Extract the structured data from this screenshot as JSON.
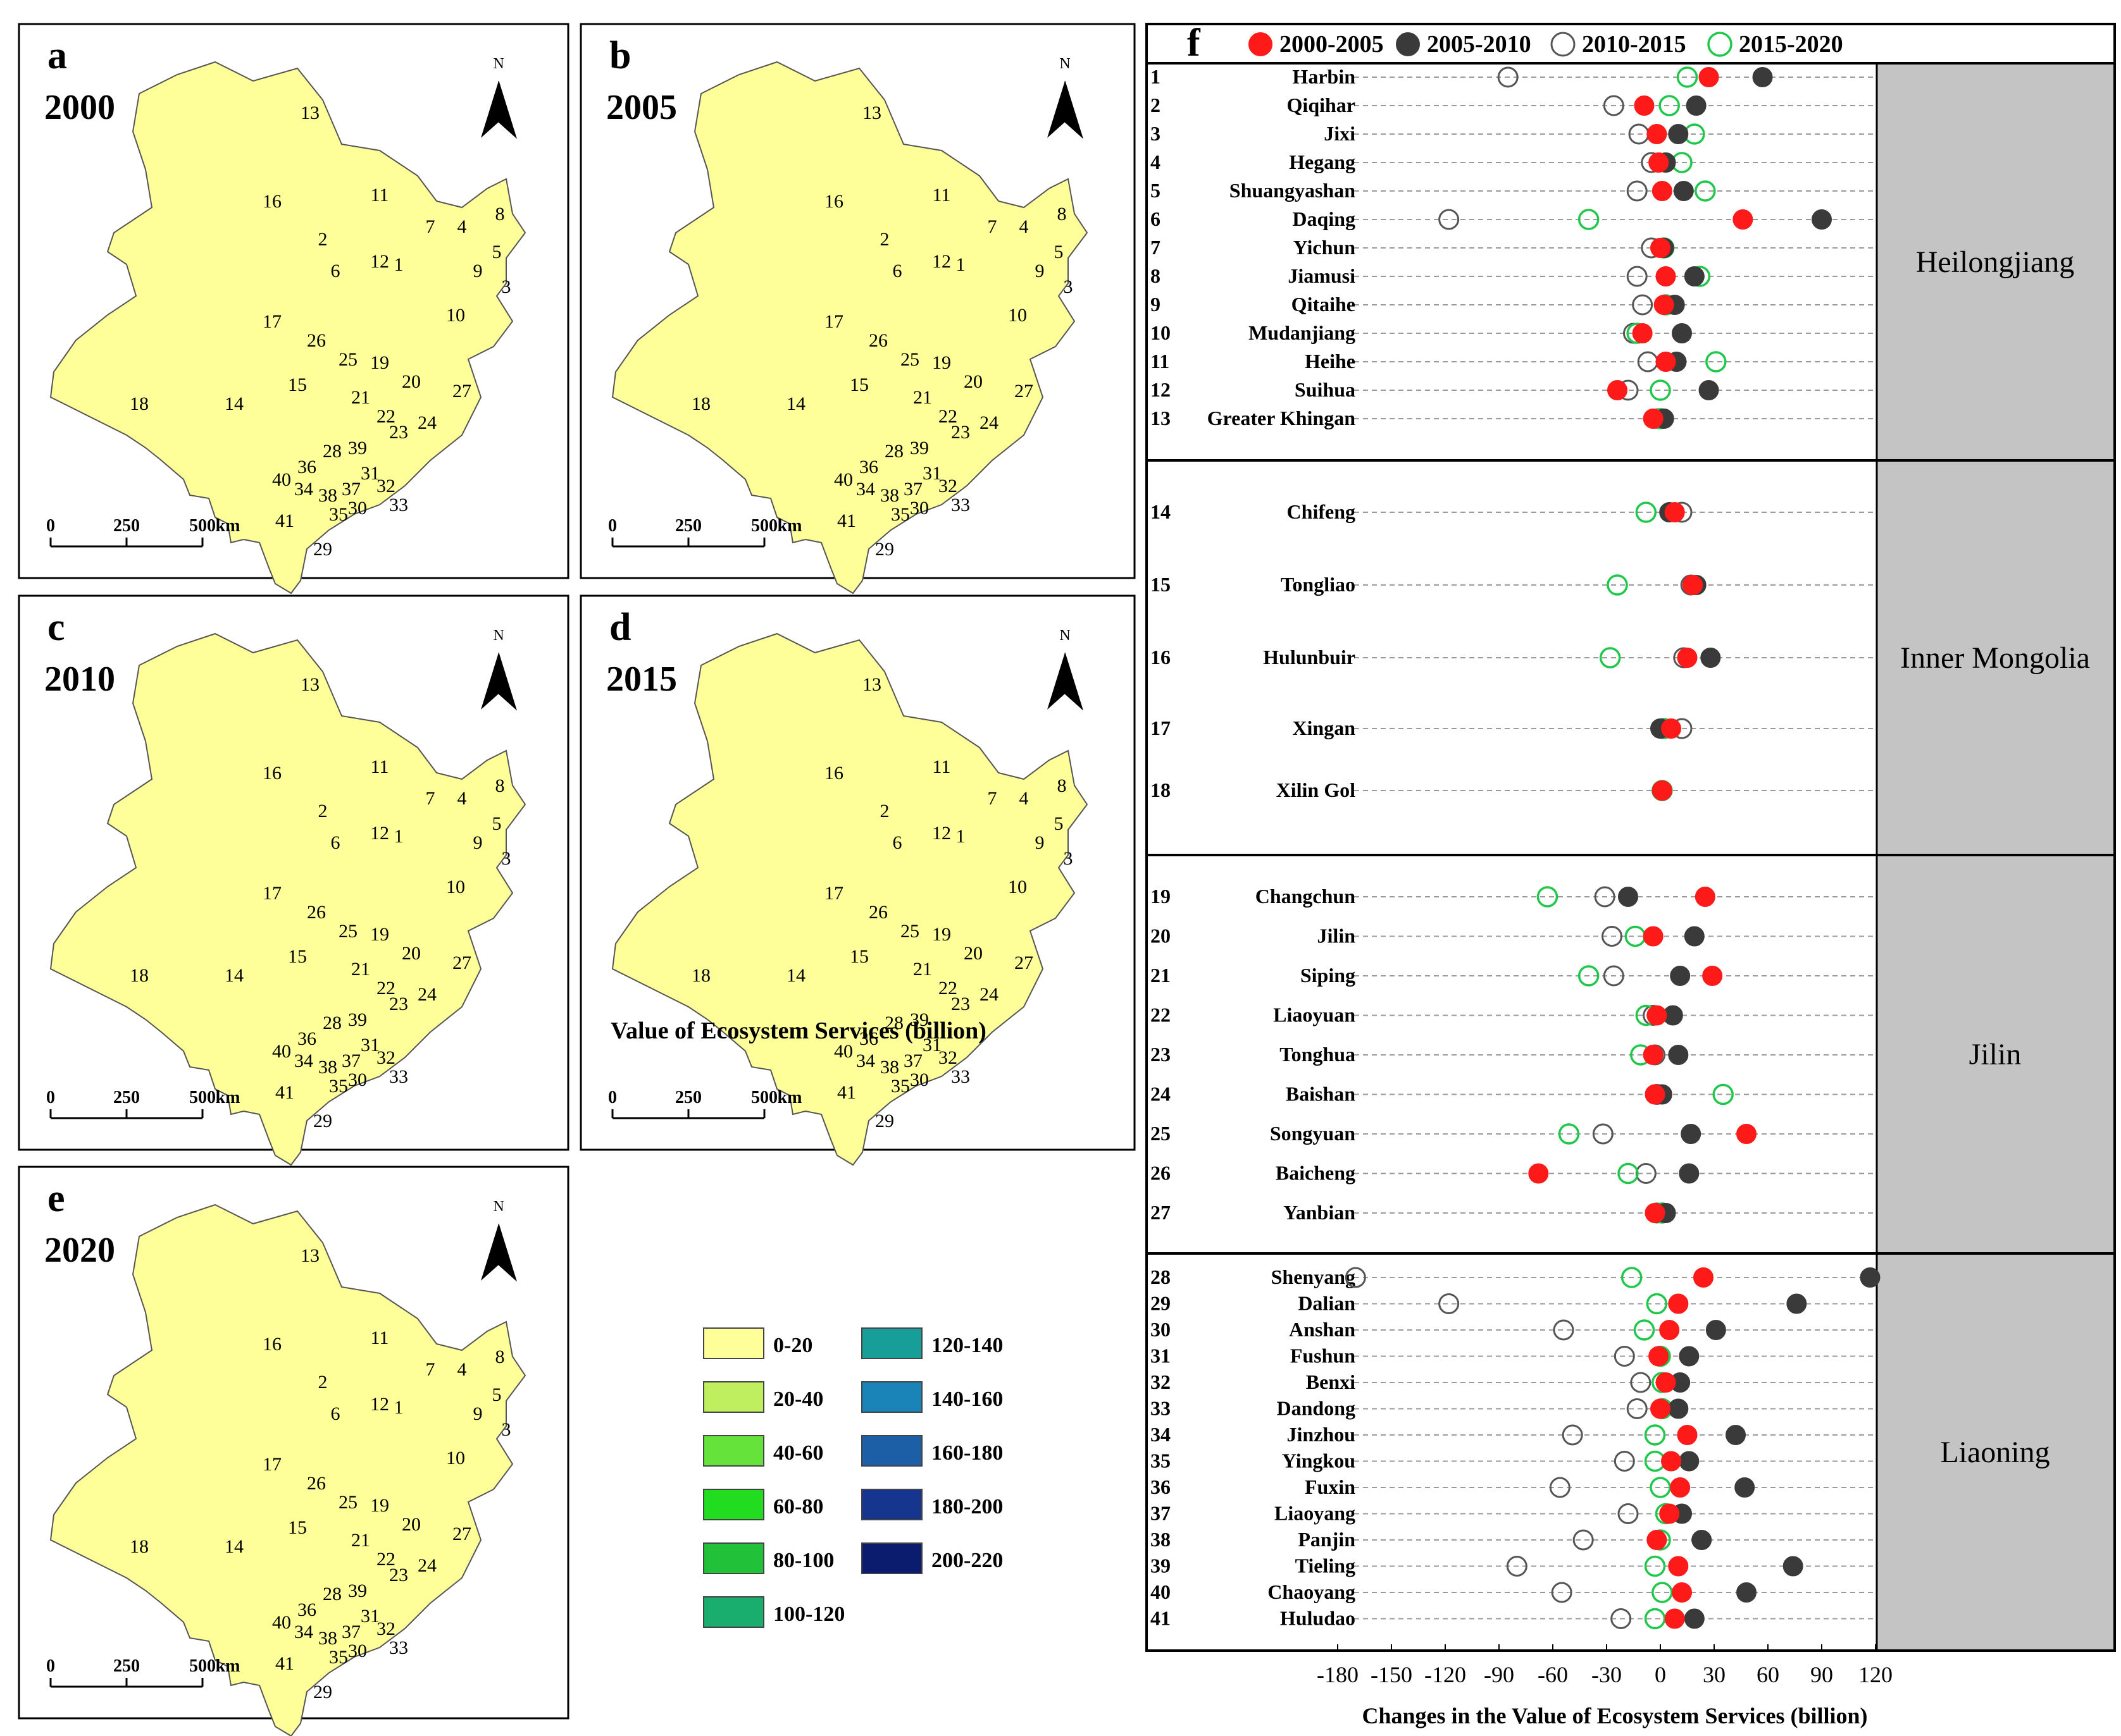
{
  "maps": [
    {
      "letter": "a",
      "year": "2000"
    },
    {
      "letter": "b",
      "year": "2005"
    },
    {
      "letter": "c",
      "year": "2010"
    },
    {
      "letter": "d",
      "year": "2015"
    },
    {
      "letter": "e",
      "year": "2020"
    }
  ],
  "map_common": {
    "north_label": "N",
    "scale_labels": [
      "0",
      "250",
      "500"
    ],
    "scale_unit": "km",
    "region_labels": [
      "1",
      "2",
      "3",
      "4",
      "5",
      "6",
      "7",
      "8",
      "9",
      "10",
      "11",
      "12",
      "13",
      "14",
      "15",
      "16",
      "17",
      "18",
      "19",
      "20",
      "21",
      "22",
      "23",
      "24",
      "25",
      "26",
      "27",
      "28",
      "29",
      "30",
      "31",
      "32",
      "33",
      "34",
      "35",
      "36",
      "37",
      "38",
      "39",
      "40",
      "41"
    ]
  },
  "legend": {
    "title": "Value of Ecosystem Services (billion)",
    "classes": [
      {
        "label": "0-20",
        "color": "#FFFF99"
      },
      {
        "label": "20-40",
        "color": "#BFEF5F"
      },
      {
        "label": "40-60",
        "color": "#66E33A"
      },
      {
        "label": "60-80",
        "color": "#22DC20"
      },
      {
        "label": "80-100",
        "color": "#22C13A"
      },
      {
        "label": "100-120",
        "color": "#1AAE6E"
      },
      {
        "label": "120-140",
        "color": "#179E98"
      },
      {
        "label": "140-160",
        "color": "#1A84B8"
      },
      {
        "label": "160-180",
        "color": "#1C5FA6"
      },
      {
        "label": "180-200",
        "color": "#16358F"
      },
      {
        "label": "200-220",
        "color": "#0B1B6E"
      }
    ]
  },
  "colors": {
    "p2000_2005": "#ff1a1a",
    "p2005_2010": "#3a3a3a",
    "p2010_2015": "#555555",
    "p2015_2020": "#1fc84a",
    "province_band": "#c4c4c4",
    "grid": "#9a9a9a"
  },
  "chart_data": {
    "type": "scatter",
    "panel_letter": "f",
    "xlabel": "Changes in the Value of Ecosystem Services (billion)",
    "xlim": [
      -180,
      120
    ],
    "xticks": [
      -180,
      -150,
      -120,
      -90,
      -60,
      -30,
      0,
      30,
      60,
      90,
      120
    ],
    "xtick_labels": [
      "-180",
      "-150",
      "-120",
      "-90",
      "-60",
      "-30",
      "0",
      "30",
      "60",
      "90",
      "120"
    ],
    "legend": [
      "2000-2005",
      "2005-2010",
      "2010-2015",
      "2015-2020"
    ],
    "provinces": [
      {
        "name": "Heilongjiang",
        "cities": [
          {
            "id": "1",
            "name": "Harbin",
            "values": [
              27,
              57,
              -85,
              15
            ]
          },
          {
            "id": "2",
            "name": "Qiqihar",
            "values": [
              -9,
              20,
              -26,
              5
            ]
          },
          {
            "id": "3",
            "name": "Jixi",
            "values": [
              -2,
              10,
              -12,
              19
            ]
          },
          {
            "id": "4",
            "name": "Hegang",
            "values": [
              -1,
              3,
              -5,
              12
            ]
          },
          {
            "id": "5",
            "name": "Shuangyashan",
            "values": [
              1,
              13,
              -13,
              25
            ]
          },
          {
            "id": "6",
            "name": "Daqing",
            "values": [
              46,
              90,
              -118,
              -40
            ]
          },
          {
            "id": "7",
            "name": "Yichun",
            "values": [
              0,
              2,
              -5,
              2
            ]
          },
          {
            "id": "8",
            "name": "Jiamusi",
            "values": [
              3,
              19,
              -13,
              22
            ]
          },
          {
            "id": "9",
            "name": "Qitaihe",
            "values": [
              2,
              8,
              -10,
              3
            ]
          },
          {
            "id": "10",
            "name": "Mudanjiang",
            "values": [
              -10,
              12,
              -15,
              -13
            ]
          },
          {
            "id": "11",
            "name": "Heihe",
            "values": [
              3,
              9,
              -7,
              31
            ]
          },
          {
            "id": "12",
            "name": "Suihua",
            "values": [
              -24,
              27,
              -18,
              0
            ]
          },
          {
            "id": "13",
            "name": "Greater Khingan",
            "values": [
              -4,
              2,
              -1,
              0
            ]
          }
        ]
      },
      {
        "name": "Inner Mongolia",
        "cities": [
          {
            "id": "14",
            "name": "Chifeng",
            "values": [
              8,
              5,
              12,
              -8
            ]
          },
          {
            "id": "15",
            "name": "Tongliao",
            "values": [
              18,
              20,
              17,
              -24
            ]
          },
          {
            "id": "16",
            "name": "Hulunbuir",
            "values": [
              15,
              28,
              13,
              -28
            ]
          },
          {
            "id": "17",
            "name": "Xingan",
            "values": [
              6,
              0,
              12,
              2
            ]
          },
          {
            "id": "18",
            "name": "Xilin Gol",
            "values": [
              1,
              1,
              1,
              1
            ]
          }
        ]
      },
      {
        "name": "Jilin",
        "cities": [
          {
            "id": "19",
            "name": "Changchun",
            "values": [
              25,
              -18,
              -31,
              -63
            ]
          },
          {
            "id": "20",
            "name": "Jilin",
            "values": [
              -4,
              19,
              -27,
              -14
            ]
          },
          {
            "id": "21",
            "name": "Siping",
            "values": [
              29,
              11,
              -26,
              -40
            ]
          },
          {
            "id": "22",
            "name": "Liaoyuan",
            "values": [
              -2,
              7,
              -4,
              -8
            ]
          },
          {
            "id": "23",
            "name": "Tonghua",
            "values": [
              -4,
              10,
              -3,
              -11
            ]
          },
          {
            "id": "24",
            "name": "Baishan",
            "values": [
              -3,
              1,
              -2,
              35
            ]
          },
          {
            "id": "25",
            "name": "Songyuan",
            "values": [
              48,
              17,
              -32,
              -51
            ]
          },
          {
            "id": "26",
            "name": "Baicheng",
            "values": [
              -68,
              16,
              -8,
              -18
            ]
          },
          {
            "id": "27",
            "name": "Yanbian",
            "values": [
              -3,
              3,
              -2,
              1
            ]
          }
        ]
      },
      {
        "name": "Liaoning",
        "cities": [
          {
            "id": "28",
            "name": "Shenyang",
            "values": [
              24,
              117,
              -170,
              -16
            ]
          },
          {
            "id": "29",
            "name": "Dalian",
            "values": [
              10,
              76,
              -118,
              -2
            ]
          },
          {
            "id": "30",
            "name": "Anshan",
            "values": [
              5,
              31,
              -54,
              -9
            ]
          },
          {
            "id": "31",
            "name": "Fushun",
            "values": [
              -1,
              16,
              -20,
              0
            ]
          },
          {
            "id": "32",
            "name": "Benxi",
            "values": [
              3,
              11,
              -11,
              1
            ]
          },
          {
            "id": "33",
            "name": "Dandong",
            "values": [
              0,
              10,
              -13,
              1
            ]
          },
          {
            "id": "34",
            "name": "Jinzhou",
            "values": [
              15,
              42,
              -49,
              -3
            ]
          },
          {
            "id": "35",
            "name": "Yingkou",
            "values": [
              6,
              16,
              -20,
              -3
            ]
          },
          {
            "id": "36",
            "name": "Fuxin",
            "values": [
              11,
              47,
              -56,
              0
            ]
          },
          {
            "id": "37",
            "name": "Liaoyang",
            "values": [
              5,
              12,
              -18,
              3
            ]
          },
          {
            "id": "38",
            "name": "Panjin",
            "values": [
              -2,
              23,
              -43,
              0
            ]
          },
          {
            "id": "39",
            "name": "Tieling",
            "values": [
              10,
              74,
              -80,
              -3
            ]
          },
          {
            "id": "40",
            "name": "Chaoyang",
            "values": [
              12,
              48,
              -55,
              1
            ]
          },
          {
            "id": "41",
            "name": "Huludao",
            "values": [
              8,
              19,
              -22,
              -3
            ]
          }
        ]
      }
    ]
  }
}
